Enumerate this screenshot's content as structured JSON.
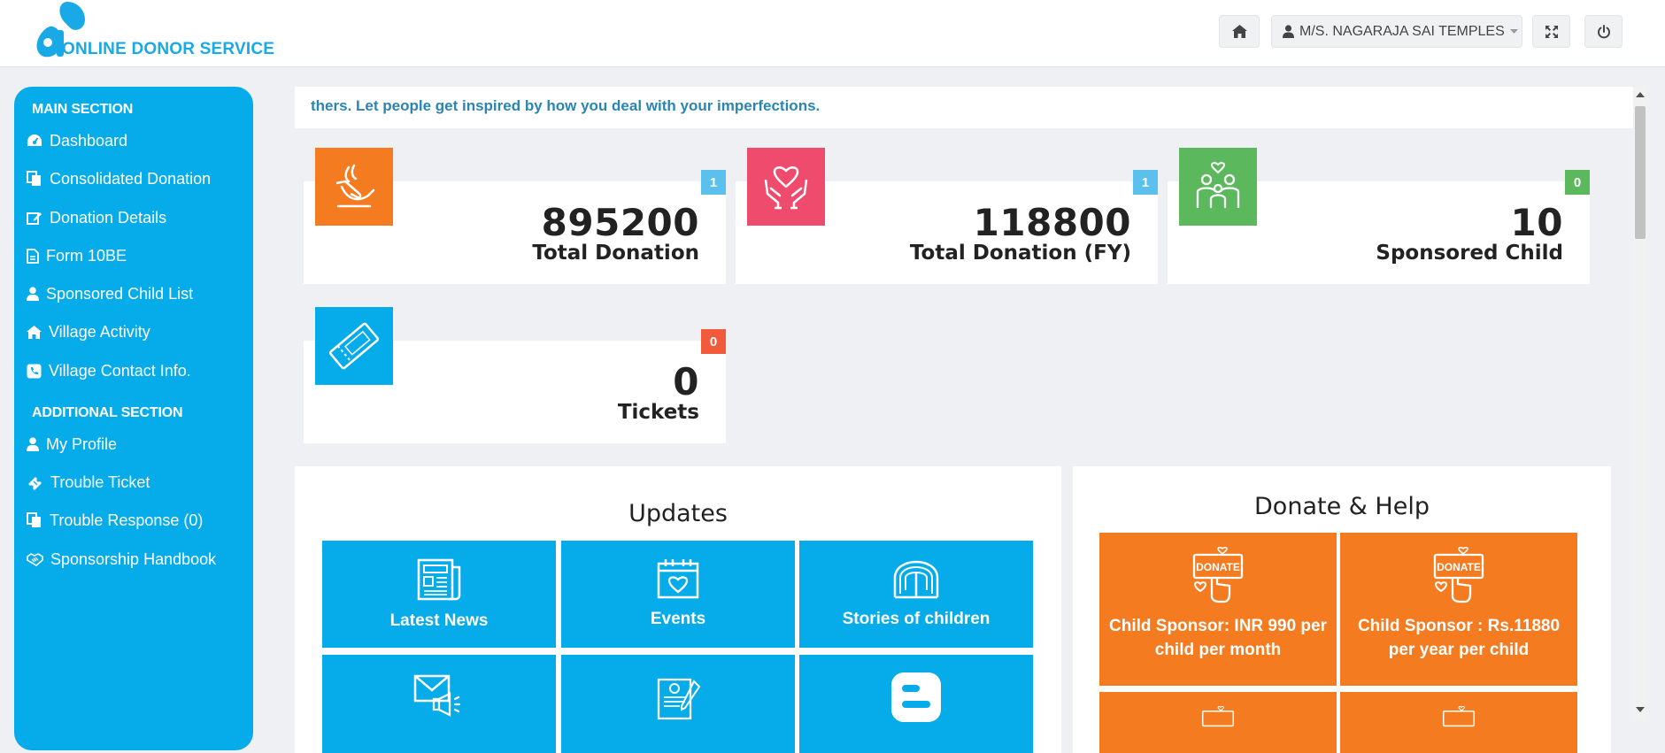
{
  "header": {
    "logo_text": "ONLINE DONOR SERVICE",
    "user_name": "M/S. NAGARAJA SAI TEMPLES",
    "icons": [
      "home-icon",
      "user-icon",
      "expand-icon",
      "power-icon"
    ]
  },
  "sidebar": {
    "main_section_title": "MAIN SECTION",
    "main_items": [
      {
        "label": "Dashboard",
        "icon": "dashboard-icon"
      },
      {
        "label": "Consolidated Donation",
        "icon": "copy-icon"
      },
      {
        "label": "Donation Details",
        "icon": "edit-icon"
      },
      {
        "label": "Form 10BE",
        "icon": "file-icon"
      },
      {
        "label": "Sponsored Child List",
        "icon": "user-icon"
      },
      {
        "label": "Village Activity",
        "icon": "home-icon"
      },
      {
        "label": "Village Contact Info.",
        "icon": "phone-icon"
      }
    ],
    "additional_section_title": "ADDITIONAL SECTION",
    "additional_items": [
      {
        "label": "My Profile",
        "icon": "user-icon"
      },
      {
        "label": "Trouble Ticket",
        "icon": "ticket-icon"
      },
      {
        "label": "Trouble Response (0)",
        "icon": "copy-icon"
      },
      {
        "label": "Sponsorship Handbook",
        "icon": "handshake-icon"
      }
    ]
  },
  "marquee": {
    "text": "thers. Let people get inspired by how you deal with your imperfections."
  },
  "stats": [
    {
      "value": "895200",
      "label": "Total Donation",
      "badge": "1",
      "icon": "donation-hand-icon",
      "icon_color": "#f47b20",
      "badge_color": "#5bc0eb"
    },
    {
      "value": "118800",
      "label": "Total Donation (FY)",
      "badge": "1",
      "icon": "heart-hands-icon",
      "icon_color": "#ef4b6c",
      "badge_color": "#5bc0eb"
    },
    {
      "value": "10",
      "label": "Sponsored Child",
      "badge": "0",
      "icon": "family-icon",
      "icon_color": "#5cb85c",
      "badge_color": "#5cb85c"
    },
    {
      "value": "0",
      "label": "Tickets",
      "badge": "0",
      "icon": "ticket-icon",
      "icon_color": "#05ace9",
      "badge_color": "#f15a3a"
    }
  ],
  "updates": {
    "title": "Updates",
    "tiles": [
      {
        "label": "Latest News",
        "icon": "newspaper-icon"
      },
      {
        "label": "Events",
        "icon": "calendar-heart-icon"
      },
      {
        "label": "Stories of children",
        "icon": "open-book-icon"
      },
      {
        "label": "",
        "icon": "mail-megaphone-icon"
      },
      {
        "label": "",
        "icon": "certificate-icon"
      },
      {
        "label": "",
        "icon": "blogger-icon"
      }
    ]
  },
  "donate": {
    "title": "Donate & Help",
    "tiles": [
      {
        "label": "Child Sponsor: INR 990 per child per month",
        "icon": "donate-sign-icon"
      },
      {
        "label": "Child Sponsor : Rs.11880 per year per child",
        "icon": "donate-sign-icon"
      },
      {
        "label": "",
        "icon": "donate-sign-icon"
      },
      {
        "label": "",
        "icon": "donate-sign-icon"
      }
    ],
    "sign_text": "DONATE"
  }
}
